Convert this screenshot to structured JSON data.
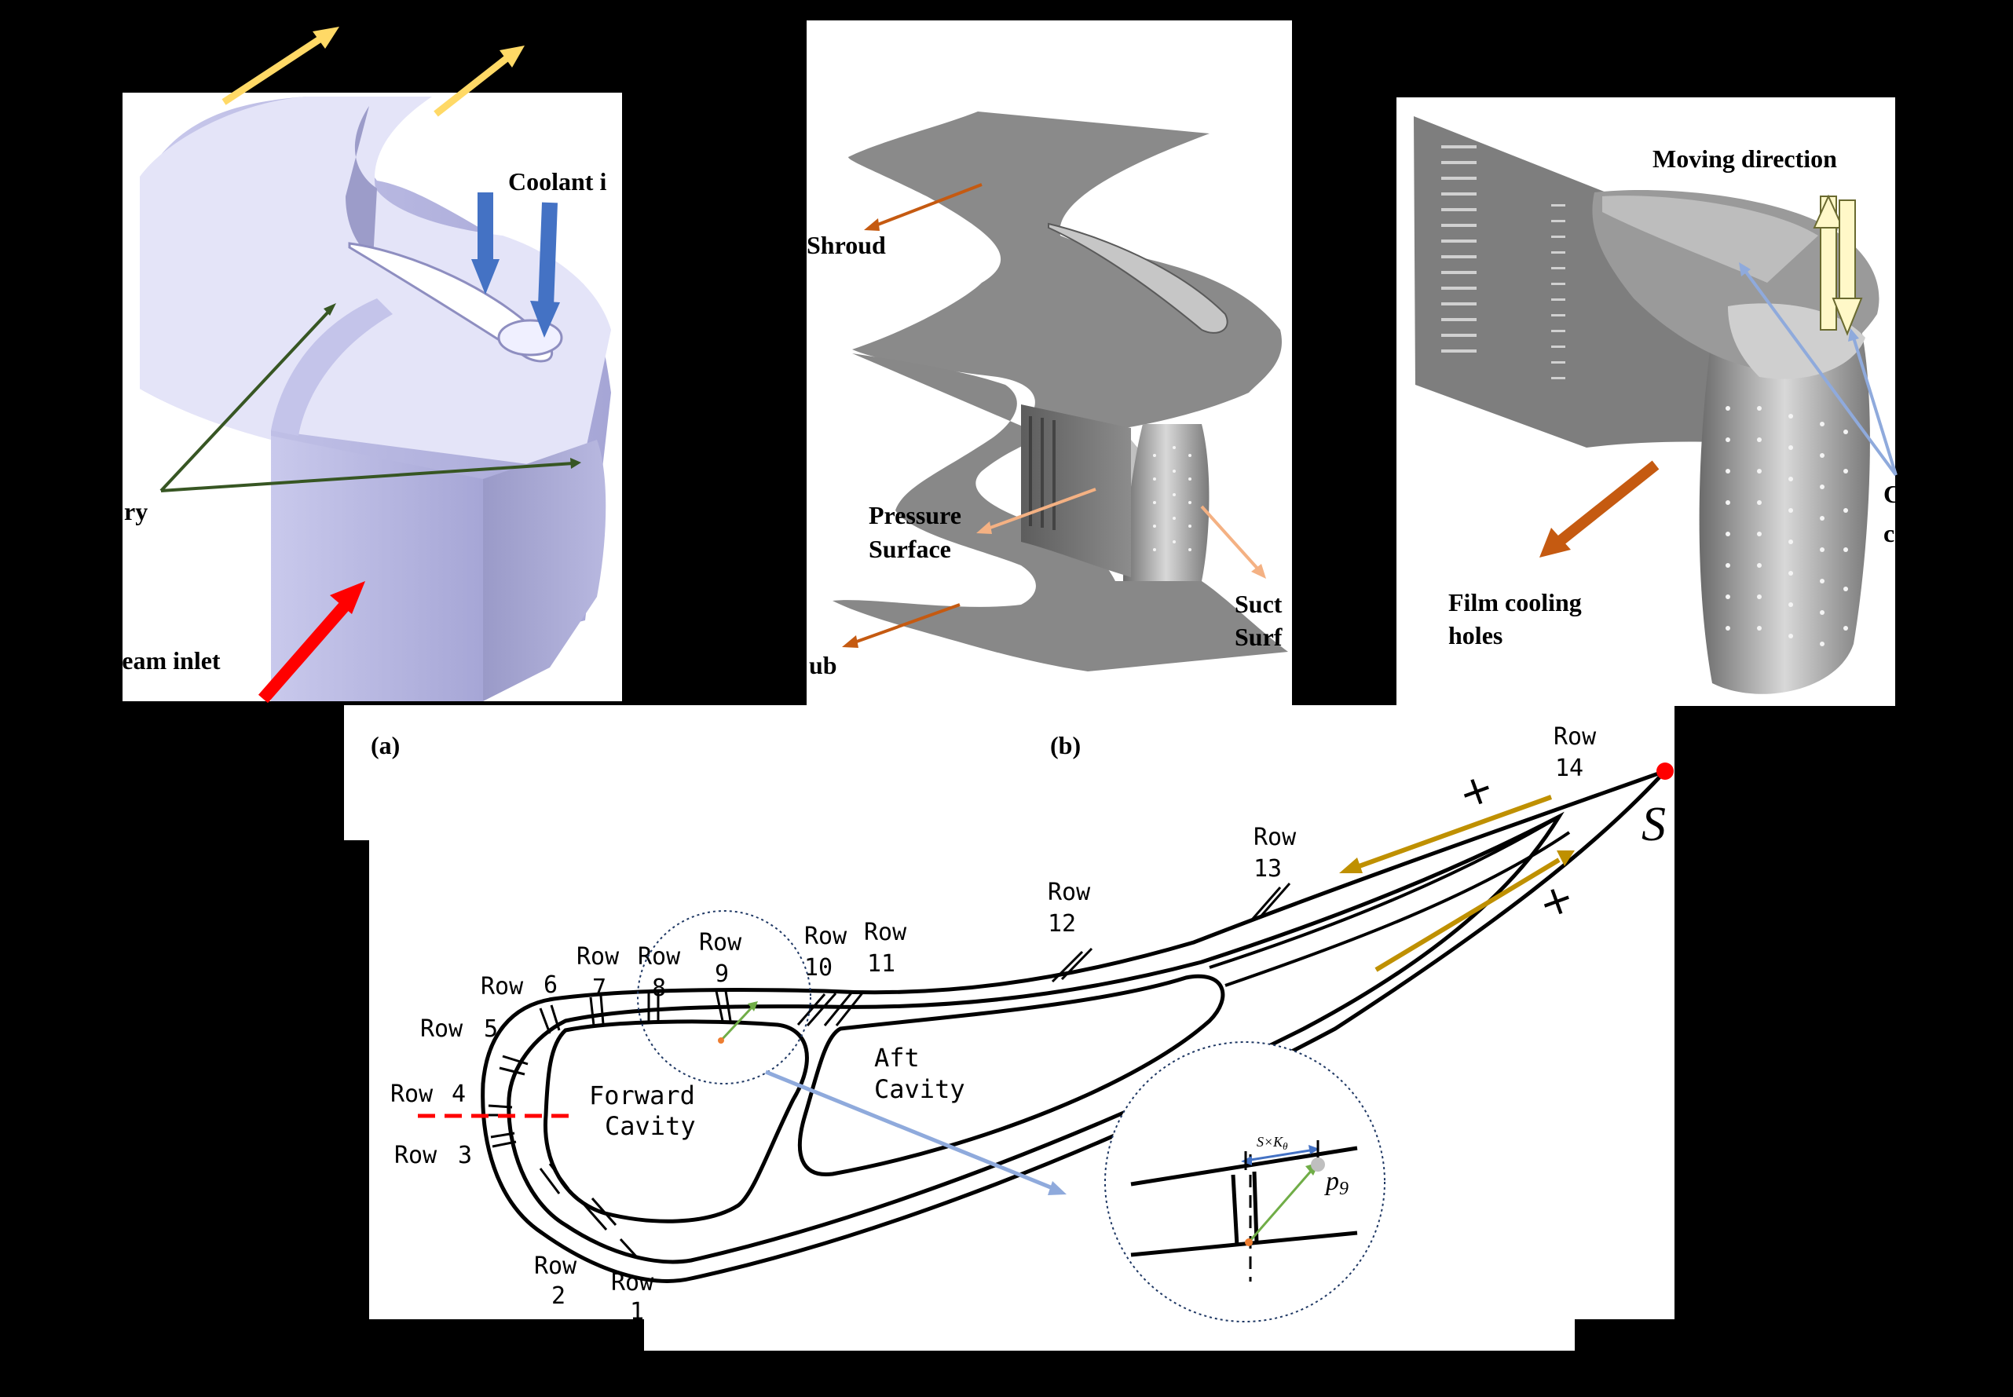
{
  "panel_a": {
    "label": "(a)",
    "coolant_inlet": "Coolant i",
    "boundary": "ry",
    "mainstream_inlet": "tream inlet"
  },
  "panel_b": {
    "label": "(b)",
    "shroud": "Shroud",
    "pressure_line1": "Pressure",
    "pressure_line2": "Surface",
    "suction_line1": "Suct",
    "suction_line2": "Surf",
    "hub": "ub"
  },
  "panel_c": {
    "moving_direction": "Moving direction",
    "film_line1": "Film cooling",
    "film_line2": "holes",
    "cut_line1": "C",
    "cut_line2": "c"
  },
  "profile": {
    "rows": [
      {
        "w": "Row",
        "n": "1"
      },
      {
        "w": "Row",
        "n": "2"
      },
      {
        "w": "Row",
        "n": "3"
      },
      {
        "w": "Row",
        "n": "4"
      },
      {
        "w": "Row",
        "n": "5"
      },
      {
        "w": "Row",
        "n": "6"
      },
      {
        "w": "Row",
        "n": "7"
      },
      {
        "w": "Row",
        "n": "8"
      },
      {
        "w": "Row",
        "n": "9"
      },
      {
        "w": "Row",
        "n": "10"
      },
      {
        "w": "Row",
        "n": "11"
      },
      {
        "w": "Row",
        "n": "12"
      },
      {
        "w": "Row",
        "n": "13"
      },
      {
        "w": "Row",
        "n": "14"
      }
    ],
    "forward_cavity_1": "Forward",
    "forward_cavity_2": "Cavity",
    "aft_cavity_1": "Aft",
    "aft_cavity_2": "Cavity",
    "s_label": "S",
    "plus_upper": "+",
    "plus_lower": "+",
    "inset_dimension": "S×K",
    "inset_dimension_sub": "θ",
    "inset_point": "p",
    "inset_point_sub": "9"
  },
  "colors": {
    "outflow_arrow": "#FFD966",
    "coolant_arrow": "#4472C4",
    "mainstream_arrow": "#FF0000",
    "boundary_arrow": "#375623",
    "orange_arrow": "#C55A11",
    "light_orange_arrow": "#F4B183",
    "light_blue_arrow": "#8FAADC",
    "gold_arrow": "#BF9000",
    "green_vector": "#70AD47",
    "block_face": "#B4B4E1",
    "block_top": "#E6E6FA"
  }
}
